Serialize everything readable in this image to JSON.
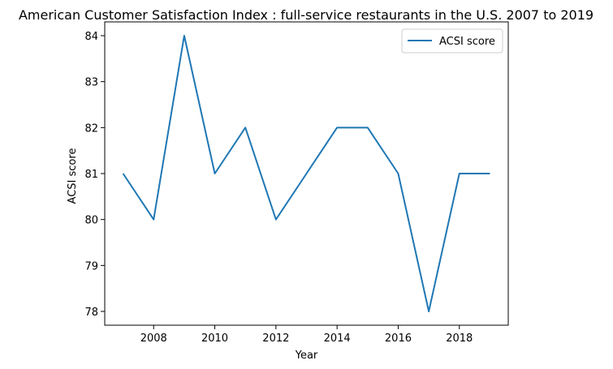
{
  "chart_data": {
    "type": "line",
    "title": "American Customer Satisfaction Index : full-service restaurants in the U.S. 2007 to 2019",
    "xlabel": "Year",
    "ylabel": "ACSI score",
    "x": [
      2007,
      2008,
      2009,
      2010,
      2011,
      2012,
      2013,
      2014,
      2015,
      2016,
      2017,
      2018,
      2019
    ],
    "series": [
      {
        "name": "ACSI score",
        "values": [
          81,
          80,
          84,
          81,
          82,
          80,
          81,
          82,
          82,
          81,
          78,
          81,
          81
        ]
      }
    ],
    "xticks": [
      "2008",
      "2010",
      "2012",
      "2014",
      "2016",
      "2018"
    ],
    "yticks": [
      "78",
      "79",
      "80",
      "81",
      "82",
      "83",
      "84"
    ],
    "xlim": [
      2006.4,
      2019.6
    ],
    "ylim": [
      77.7,
      84.3
    ],
    "grid": false,
    "legend_position": "upper right",
    "colors": {
      "line": "#1f77b4"
    }
  }
}
